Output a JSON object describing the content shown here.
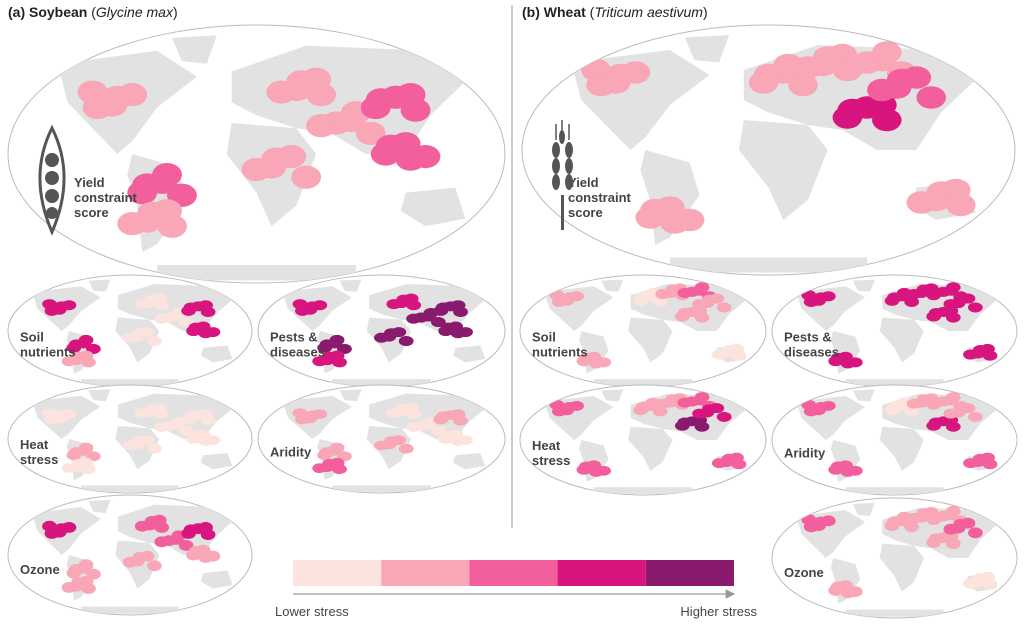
{
  "panels": [
    {
      "title": [
        "(a) Soybean",
        " (",
        "Glycine max",
        ")"
      ],
      "main_label": [
        "Yield",
        "constraint",
        "score"
      ],
      "maps": [
        [
          "Soil",
          "nutrients"
        ],
        [
          "Pests &",
          "diseases"
        ],
        [
          "Heat",
          "stress"
        ],
        [
          "Aridity"
        ],
        [
          "Ozone"
        ]
      ]
    },
    {
      "title": [
        "(b) Wheat",
        " (",
        "Triticum aestivum",
        ")"
      ],
      "main_label": [
        "Yield",
        "constraint",
        "score"
      ],
      "maps": [
        [
          "Soil",
          "nutrients"
        ],
        [
          "Pests &",
          "diseases"
        ],
        [
          "Heat",
          "stress"
        ],
        [
          "Aridity"
        ],
        [
          "Ozone"
        ]
      ]
    }
  ],
  "legend": {
    "colors": [
      "#fde3de",
      "#f9a6b6",
      "#f25f9c",
      "#d8147f",
      "#8a1a6e"
    ],
    "low": "Lower stress",
    "high": "Higher stress"
  }
}
